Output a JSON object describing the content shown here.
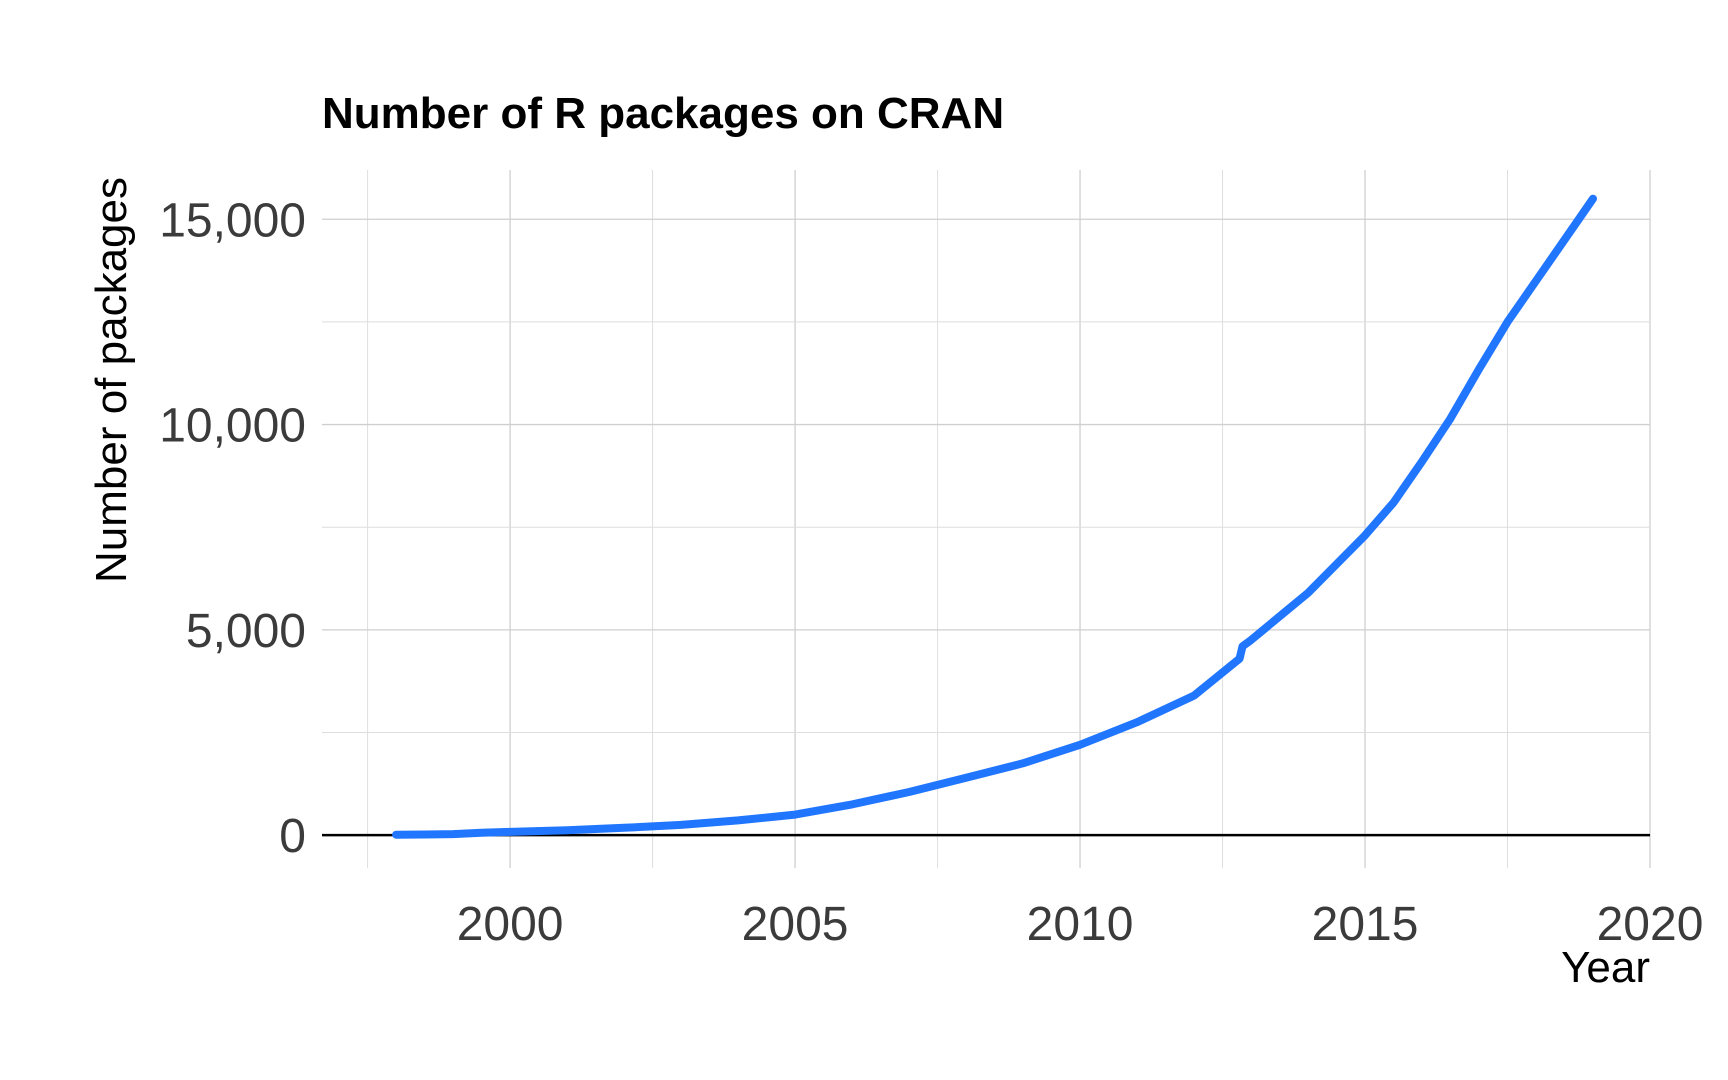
{
  "chart_data": {
    "type": "line",
    "title": "Number of R packages on CRAN",
    "xlabel": "Year",
    "ylabel": "Number of packages",
    "xlim": [
      1996.7,
      2020
    ],
    "ylim": [
      -800,
      16200
    ],
    "x_ticks": [
      2000,
      2005,
      2010,
      2015,
      2020
    ],
    "x_tick_labels": [
      "2000",
      "2005",
      "2010",
      "2015",
      "2020"
    ],
    "y_ticks": [
      0,
      5000,
      10000,
      15000
    ],
    "y_tick_labels": [
      "0",
      "5,000",
      "10,000",
      "15,000"
    ],
    "grid": true,
    "legend": "none",
    "line_color": "#2176ff",
    "series": [
      {
        "x": [
          1998.0,
          1998.5,
          1999.0,
          1999.5,
          2000.0,
          2001.0,
          2002.0,
          2003.0,
          2004.0,
          2005.0,
          2006.0,
          2007.0,
          2008.0,
          2009.0,
          2010.0,
          2011.0,
          2012.0,
          2012.8,
          2012.85,
          2013.0,
          2014.0,
          2015.0,
          2015.5,
          2016.0,
          2016.5,
          2017.0,
          2017.5,
          2018.0,
          2018.5,
          2019.0
        ],
        "y": [
          10,
          15,
          25,
          60,
          80,
          120,
          180,
          250,
          360,
          500,
          750,
          1050,
          1400,
          1750,
          2200,
          2750,
          3400,
          4300,
          4600,
          4750,
          5900,
          7300,
          8100,
          9100,
          10150,
          11350,
          12500,
          13500,
          14500,
          15500
        ]
      }
    ]
  }
}
